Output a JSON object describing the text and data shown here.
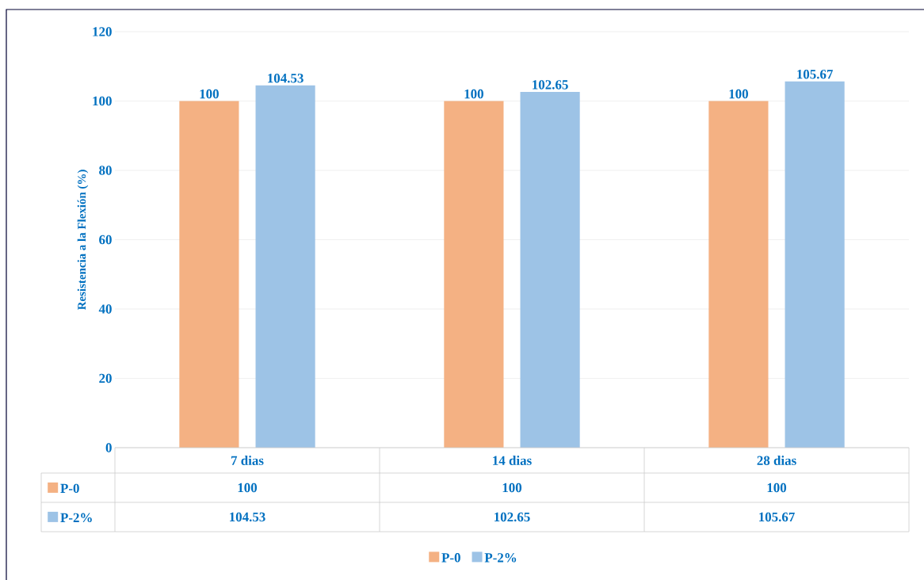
{
  "chart_data": {
    "type": "bar",
    "ylabel": "Resistencia a la Flexión (%)",
    "categories": [
      "7 dias",
      "14 dias",
      "28 dias"
    ],
    "series": [
      {
        "name": "P-0",
        "color": "#f4b183",
        "values": [
          100,
          100,
          100
        ],
        "value_labels": [
          "100",
          "100",
          "100"
        ]
      },
      {
        "name": "P-2%",
        "color": "#9dc3e6",
        "values": [
          104.53,
          102.65,
          105.67
        ],
        "value_labels": [
          "104.53",
          "102.65",
          "105.67"
        ]
      }
    ],
    "ylim": [
      0,
      120
    ],
    "yticks": [
      0,
      20,
      40,
      60,
      80,
      100,
      120
    ],
    "grid": "y",
    "legend": "bottom"
  }
}
